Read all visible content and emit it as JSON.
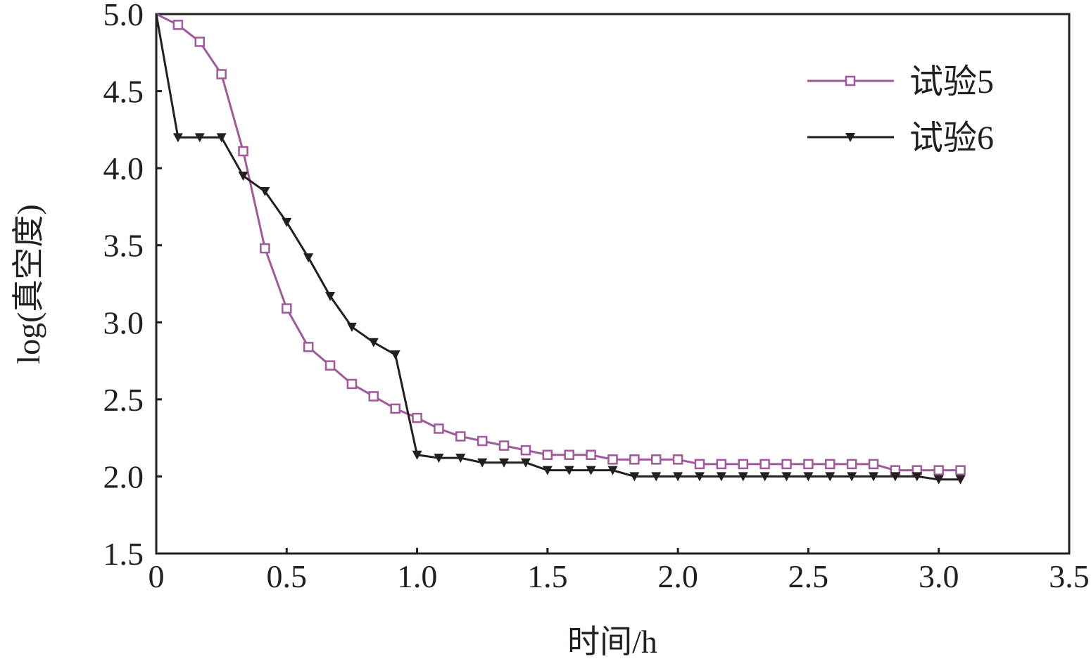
{
  "chart_data": {
    "type": "line",
    "title": "",
    "xlabel": "时间/h",
    "ylabel": "log(真空度)",
    "xlim": [
      0,
      3.5
    ],
    "ylim": [
      1.5,
      5.0
    ],
    "x_ticks": [
      0,
      0.5,
      1.0,
      1.5,
      2.0,
      2.5,
      3.0,
      3.5
    ],
    "x_tick_labels": [
      "0",
      "0.5",
      "1.0",
      "1.5",
      "2.0",
      "2.5",
      "3.0",
      "3.5"
    ],
    "y_ticks": [
      1.5,
      2.0,
      2.5,
      3.0,
      3.5,
      4.0,
      4.5,
      5.0
    ],
    "y_tick_labels": [
      "1.5",
      "2.0",
      "2.5",
      "3.0",
      "3.5",
      "4.0",
      "4.5",
      "5.0"
    ],
    "grid": false,
    "legend_position": "top-right",
    "x_step_hours": 0.08333,
    "series": [
      {
        "name": "试验5",
        "color": "#a05a9c",
        "marker": "square-open",
        "values": [
          5.0,
          4.93,
          4.82,
          4.61,
          4.11,
          3.48,
          3.09,
          2.84,
          2.72,
          2.6,
          2.52,
          2.44,
          2.38,
          2.31,
          2.26,
          2.23,
          2.2,
          2.17,
          2.14,
          2.14,
          2.14,
          2.11,
          2.11,
          2.11,
          2.11,
          2.08,
          2.08,
          2.08,
          2.08,
          2.08,
          2.08,
          2.08,
          2.08,
          2.08,
          2.04,
          2.04,
          2.04,
          2.04
        ]
      },
      {
        "name": "试验6",
        "color": "#231f20",
        "marker": "triangle-down-filled",
        "values": [
          5.0,
          4.2,
          4.2,
          4.2,
          3.95,
          3.85,
          3.65,
          3.42,
          3.17,
          2.97,
          2.87,
          2.79,
          2.14,
          2.12,
          2.12,
          2.09,
          2.09,
          2.09,
          2.04,
          2.04,
          2.04,
          2.04,
          2.0,
          2.0,
          2.0,
          2.0,
          2.0,
          2.0,
          2.0,
          2.0,
          2.0,
          2.0,
          2.0,
          2.0,
          2.0,
          2.0,
          1.98,
          1.98
        ]
      }
    ]
  }
}
